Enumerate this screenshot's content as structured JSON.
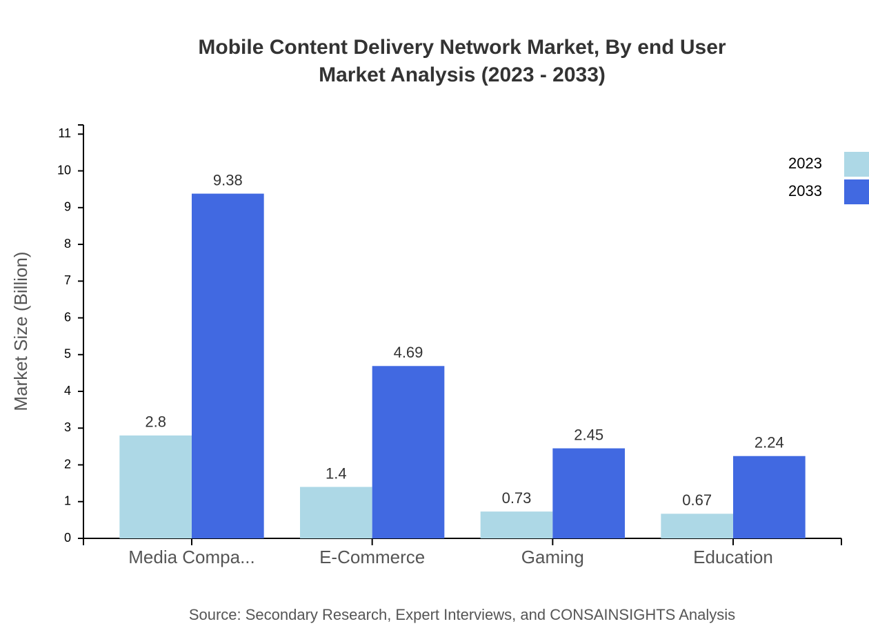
{
  "chart_data": {
    "type": "bar",
    "title": [
      "Mobile Content Delivery Network Market, By end User",
      "Market Analysis (2023 - 2033)"
    ],
    "y_label": "Market Size (Billion)",
    "source": "Source: Secondary Research, Expert Interviews, and CONSAINSIGHTS Analysis",
    "categories": [
      "Media Compa...",
      "E-Commerce",
      "Gaming",
      "Education"
    ],
    "series": [
      {
        "name": "2023",
        "color": "#add8e6",
        "values": [
          2.8,
          1.4,
          0.73,
          0.67
        ]
      },
      {
        "name": "2033",
        "color": "#4169e1",
        "values": [
          9.38,
          4.69,
          2.45,
          2.24
        ]
      }
    ],
    "ylim": [
      0,
      11.25
    ],
    "yticks": [
      0,
      1,
      2,
      3,
      4,
      5,
      6,
      7,
      8,
      9,
      10,
      11
    ],
    "grid": false,
    "legend": "top-right"
  }
}
